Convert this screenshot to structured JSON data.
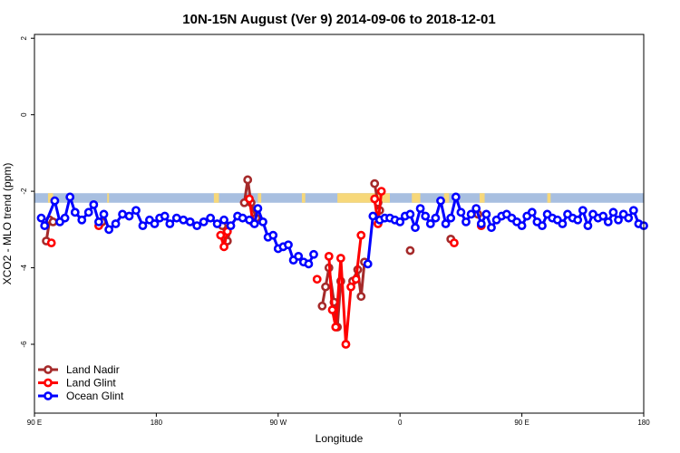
{
  "chart_data": {
    "type": "line",
    "title": "10N-15N August (Ver 9)   2014-09-06 to 2018-12-01",
    "xlabel": "Longitude",
    "ylabel": "XCO2 - MLO trend (ppm)",
    "xlim": [
      -180,
      180
    ],
    "ylim": [
      -7.8,
      2.1
    ],
    "x_ticks": [
      {
        "value": -180,
        "label": "90 E"
      },
      {
        "value": -108,
        "label": "180"
      },
      {
        "value": -36,
        "label": "90 W"
      },
      {
        "value": 36,
        "label": "0"
      },
      {
        "value": 108,
        "label": "90 E"
      },
      {
        "value": 180,
        "label": "180"
      }
    ],
    "y_ticks": [
      {
        "value": 2,
        "label": "2"
      },
      {
        "value": 0,
        "label": "0"
      },
      {
        "value": -2,
        "label": "-2"
      },
      {
        "value": -4,
        "label": "-4"
      },
      {
        "value": -6,
        "label": "-6"
      }
    ],
    "grid": false,
    "legend_position": "bottom-left",
    "band": {
      "y_top": -2.05,
      "y_bottom": -2.3,
      "base_color": "#a8bfe0",
      "land_color": "#f7d87a",
      "land_segments": [
        [
          -172,
          -169
        ],
        [
          -137,
          -136
        ],
        [
          -74,
          -71
        ],
        [
          -48,
          -46
        ],
        [
          -22,
          -20
        ],
        [
          -1,
          30
        ],
        [
          43,
          48
        ],
        [
          62,
          65
        ],
        [
          83,
          86
        ],
        [
          123,
          125
        ]
      ]
    },
    "series": [
      {
        "name": "Land Nadir",
        "color": "#a52a2a",
        "segments": [
          {
            "x": [
              -173,
              -171,
              -169
            ],
            "y": [
              -3.3,
              -2.75,
              -2.8
            ]
          },
          {
            "x": [
              -140
            ],
            "y": [
              -2.8
            ]
          },
          {
            "x": [
              -69,
              -67,
              -66
            ],
            "y": [
              -2.9,
              -3.15,
              -3.3
            ]
          },
          {
            "x": [
              -56,
              -54,
              -52,
              -49
            ],
            "y": [
              -2.3,
              -1.7,
              -2.3,
              -2.7
            ]
          },
          {
            "x": [
              -10,
              -8,
              -6,
              -3,
              -1,
              1
            ],
            "y": [
              -5.0,
              -4.5,
              -4.0,
              -4.9,
              -5.55,
              -4.35
            ]
          },
          {
            "x": [
              8,
              11,
              13,
              15
            ],
            "y": [
              -4.35,
              -4.05,
              -4.75,
              -3.85
            ]
          },
          {
            "x": [
              21,
              23,
              24
            ],
            "y": [
              -1.8,
              -2.3,
              -2.5
            ]
          },
          {
            "x": [
              42
            ],
            "y": [
              -3.55
            ]
          },
          {
            "x": [
              66
            ],
            "y": [
              -3.25
            ]
          },
          {
            "x": [
              82
            ],
            "y": [
              -2.6
            ]
          }
        ]
      },
      {
        "name": "Land Glint",
        "color": "#ff0000",
        "segments": [
          {
            "x": [
              -170
            ],
            "y": [
              -3.35
            ]
          },
          {
            "x": [
              -142
            ],
            "y": [
              -2.9
            ]
          },
          {
            "x": [
              -70,
              -68,
              -66
            ],
            "y": [
              -3.15,
              -3.45,
              -3.05
            ]
          },
          {
            "x": [
              -53,
              -51
            ],
            "y": [
              -2.2,
              -2.8
            ]
          },
          {
            "x": [
              -13
            ],
            "y": [
              -4.3
            ]
          },
          {
            "x": [
              -6,
              -4,
              -2,
              1,
              4,
              7,
              10,
              13
            ],
            "y": [
              -3.7,
              -5.1,
              -5.55,
              -3.75,
              -6.0,
              -4.5,
              -4.3,
              -3.15
            ]
          },
          {
            "x": [
              21,
              23,
              25
            ],
            "y": [
              -2.2,
              -2.85,
              -2.0
            ]
          },
          {
            "x": [
              68
            ],
            "y": [
              -3.35
            ]
          },
          {
            "x": [
              84
            ],
            "y": [
              -2.9
            ]
          }
        ]
      },
      {
        "name": "Ocean Glint",
        "color": "#0000ff",
        "segments": [
          {
            "x": [
              -176,
              -174,
              -168,
              -165,
              -162,
              -159,
              -156,
              -152,
              -148,
              -145,
              -142,
              -139,
              -136,
              -132,
              -128,
              -124,
              -120,
              -116,
              -112,
              -109,
              -106,
              -103,
              -100,
              -96,
              -92,
              -88,
              -84,
              -80,
              -76,
              -72,
              -68,
              -64,
              -60,
              -57,
              -53,
              -50,
              -48,
              -45,
              -42,
              -39,
              -36,
              -33,
              -30,
              -27,
              -24,
              -21,
              -18,
              -15
            ],
            "y": [
              -2.7,
              -2.9,
              -2.25,
              -2.8,
              -2.7,
              -2.15,
              -2.55,
              -2.75,
              -2.55,
              -2.35,
              -2.8,
              -2.6,
              -3.0,
              -2.85,
              -2.6,
              -2.65,
              -2.5,
              -2.9,
              -2.75,
              -2.85,
              -2.7,
              -2.65,
              -2.85,
              -2.7,
              -2.75,
              -2.8,
              -2.9,
              -2.8,
              -2.7,
              -2.85,
              -2.75,
              -2.9,
              -2.65,
              -2.7,
              -2.75,
              -2.85,
              -2.45,
              -2.8,
              -3.2,
              -3.15,
              -3.5,
              -3.45,
              -3.4,
              -3.8,
              -3.7,
              -3.85,
              -3.9,
              -3.65
            ]
          },
          {
            "x": [
              17,
              20,
              24,
              27,
              30,
              33,
              36,
              39,
              42,
              45,
              48,
              51,
              54,
              57,
              60,
              63,
              66,
              69,
              72,
              75,
              78,
              81,
              84,
              87,
              90,
              93,
              96,
              99,
              102,
              105,
              108,
              111,
              114,
              117,
              120,
              123,
              126,
              129,
              132,
              135,
              138,
              141,
              144,
              147,
              150,
              153,
              156,
              159,
              162,
              165,
              168,
              171,
              174,
              177,
              180
            ],
            "y": [
              -3.9,
              -2.65,
              -2.75,
              -2.7,
              -2.7,
              -2.75,
              -2.8,
              -2.65,
              -2.6,
              -2.95,
              -2.45,
              -2.65,
              -2.85,
              -2.7,
              -2.25,
              -2.85,
              -2.7,
              -2.15,
              -2.55,
              -2.8,
              -2.6,
              -2.45,
              -2.85,
              -2.6,
              -2.95,
              -2.75,
              -2.65,
              -2.6,
              -2.7,
              -2.8,
              -2.9,
              -2.65,
              -2.55,
              -2.8,
              -2.9,
              -2.6,
              -2.7,
              -2.75,
              -2.85,
              -2.6,
              -2.7,
              -2.75,
              -2.5,
              -2.9,
              -2.6,
              -2.7,
              -2.65,
              -2.8,
              -2.55,
              -2.75,
              -2.6,
              -2.7,
              -2.5,
              -2.85,
              -2.9
            ]
          }
        ]
      }
    ]
  }
}
